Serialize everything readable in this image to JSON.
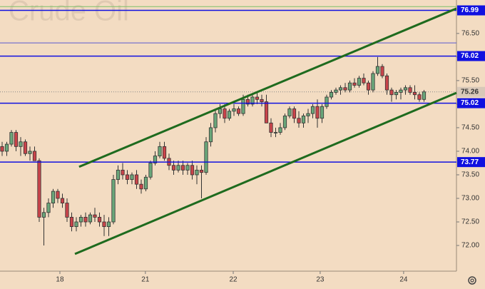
{
  "chart_data": {
    "type": "candlestick",
    "title": "Crude Oil",
    "open": [
      74.1,
      74.0,
      74.15,
      74.4,
      74.1,
      74.2,
      73.95,
      74.0,
      73.8,
      72.6,
      72.7,
      72.9,
      73.15,
      73.0,
      72.9,
      72.6,
      72.4,
      72.5,
      72.6,
      72.5,
      72.65,
      72.6,
      72.5,
      72.4,
      72.5,
      73.4,
      73.6,
      73.5,
      73.4,
      73.5,
      73.3,
      73.2,
      73.45,
      73.75,
      73.9,
      74.1,
      73.85,
      73.7,
      73.6,
      73.7,
      73.6,
      73.7,
      73.5,
      73.6,
      73.55,
      74.2,
      74.5,
      74.8,
      74.9,
      74.7,
      74.85,
      74.9,
      74.8,
      75.1,
      75.0,
      75.15,
      75.1,
      75.05,
      74.6,
      74.4,
      74.4,
      74.5,
      74.75,
      74.9,
      74.7,
      74.6,
      74.75,
      74.8,
      74.95,
      74.7,
      74.95,
      75.15,
      75.25,
      75.3,
      75.35,
      75.3,
      75.45,
      75.4,
      75.55,
      75.45,
      75.3,
      75.65,
      75.8,
      75.6,
      75.3,
      75.2,
      75.25,
      75.3,
      75.35,
      75.25,
      75.2,
      75.1
    ],
    "high": [
      74.2,
      74.2,
      74.45,
      74.45,
      74.3,
      74.25,
      74.1,
      74.1,
      73.85,
      72.8,
      73.0,
      73.2,
      73.2,
      73.1,
      73.0,
      72.7,
      72.6,
      72.65,
      72.7,
      72.7,
      72.8,
      72.7,
      72.65,
      72.6,
      73.5,
      73.7,
      73.75,
      73.6,
      73.55,
      73.6,
      73.4,
      73.5,
      73.8,
      74.0,
      74.2,
      74.2,
      73.95,
      73.8,
      73.8,
      73.8,
      73.75,
      73.8,
      73.7,
      73.7,
      74.3,
      74.6,
      74.9,
      75.0,
      75.0,
      74.9,
      75.0,
      74.95,
      75.2,
      75.2,
      75.2,
      75.25,
      75.2,
      75.2,
      74.7,
      74.5,
      74.6,
      74.8,
      74.95,
      74.95,
      74.85,
      74.8,
      74.9,
      75.0,
      75.1,
      75.0,
      75.2,
      75.3,
      75.35,
      75.4,
      75.45,
      75.5,
      75.55,
      75.6,
      75.65,
      75.5,
      75.7,
      76.0,
      75.85,
      75.65,
      75.35,
      75.3,
      75.35,
      75.4,
      75.4,
      75.4,
      75.25,
      75.3
    ],
    "low": [
      73.9,
      73.9,
      74.1,
      74.0,
      73.9,
      73.9,
      73.8,
      73.8,
      72.5,
      72.0,
      72.6,
      72.8,
      72.9,
      72.8,
      72.5,
      72.3,
      72.3,
      72.4,
      72.4,
      72.45,
      72.5,
      72.4,
      72.2,
      72.2,
      72.45,
      73.3,
      73.4,
      73.3,
      73.3,
      73.2,
      73.1,
      73.15,
      73.4,
      73.7,
      73.85,
      73.8,
      73.6,
      73.5,
      73.55,
      73.5,
      73.5,
      73.4,
      73.3,
      73.0,
      73.5,
      74.1,
      74.4,
      74.7,
      74.6,
      74.65,
      74.75,
      74.75,
      74.75,
      74.95,
      74.95,
      75.0,
      74.95,
      74.6,
      74.3,
      74.3,
      74.35,
      74.45,
      74.7,
      74.6,
      74.5,
      74.5,
      74.6,
      74.7,
      74.5,
      74.6,
      74.9,
      75.1,
      75.2,
      75.2,
      75.25,
      75.25,
      75.35,
      75.35,
      75.4,
      75.2,
      75.25,
      75.6,
      75.55,
      75.2,
      75.05,
      75.1,
      75.1,
      75.2,
      75.2,
      75.1,
      75.05,
      75.05
    ],
    "close": [
      74.0,
      74.15,
      74.4,
      74.1,
      74.2,
      73.95,
      74.0,
      73.8,
      72.6,
      72.7,
      72.9,
      73.15,
      73.0,
      72.9,
      72.6,
      72.4,
      72.5,
      72.6,
      72.5,
      72.65,
      72.6,
      72.5,
      72.4,
      72.5,
      73.4,
      73.6,
      73.5,
      73.4,
      73.5,
      73.3,
      73.2,
      73.45,
      73.75,
      73.9,
      74.1,
      73.85,
      73.7,
      73.6,
      73.7,
      73.6,
      73.7,
      73.5,
      73.6,
      73.55,
      74.2,
      74.5,
      74.8,
      74.9,
      74.7,
      74.85,
      74.9,
      74.8,
      75.1,
      75.0,
      75.15,
      75.1,
      75.05,
      74.6,
      74.4,
      74.4,
      74.5,
      74.75,
      74.9,
      74.7,
      74.6,
      74.75,
      74.8,
      74.95,
      74.7,
      74.95,
      75.15,
      75.25,
      75.3,
      75.35,
      75.3,
      75.45,
      75.4,
      75.55,
      75.45,
      75.3,
      75.65,
      75.8,
      75.6,
      75.3,
      75.2,
      75.25,
      75.3,
      75.35,
      75.25,
      75.2,
      75.1,
      75.26
    ],
    "up_color": "#6aa77a",
    "down_color": "#c9444a",
    "xlim": [
      -0.46,
      98
    ],
    "xticks": [
      {
        "value": 12.46,
        "label": "18"
      },
      {
        "value": 30.9,
        "label": "21"
      },
      {
        "value": 49.85,
        "label": "22"
      },
      {
        "value": 68.6,
        "label": "23"
      },
      {
        "value": 86.6,
        "label": "24"
      }
    ],
    "ylim": [
      71.455,
      77.21
    ],
    "yticks": [
      {
        "value": 72,
        "label": "72.00"
      },
      {
        "value": 72.5,
        "label": "72.50"
      },
      {
        "value": 73,
        "label": "73.00"
      },
      {
        "value": 73.5,
        "label": "73.50"
      },
      {
        "value": 74,
        "label": "74.00"
      },
      {
        "value": 74.5,
        "label": "74.50"
      },
      {
        "value": 75,
        "label": "75.00"
      },
      {
        "value": 75.5,
        "label": "75.50"
      },
      {
        "value": 76,
        "label": "76.00"
      },
      {
        "value": 76.5,
        "label": "76.50"
      }
    ],
    "levels": [
      {
        "value": 76.99,
        "color": "#1010e0"
      },
      {
        "value": 76.02,
        "color": "#1010e0"
      },
      {
        "value": 75.02,
        "color": "#1010e0"
      },
      {
        "value": 73.77,
        "color": "#1010e0"
      }
    ],
    "guides": [
      {
        "value": 77.07,
        "color": "#7fbf6a"
      },
      {
        "value": 76.3,
        "color": "#5a5ad0"
      }
    ],
    "last_price": 75.26,
    "trendlines": [
      {
        "x": [
          16.6,
          98
        ],
        "y": [
          73.67,
          77.03
        ],
        "color": "#1e6b1e"
      },
      {
        "x": [
          15.7,
          98
        ],
        "y": [
          71.82,
          75.24
        ],
        "color": "#1e6b1e"
      }
    ]
  }
}
